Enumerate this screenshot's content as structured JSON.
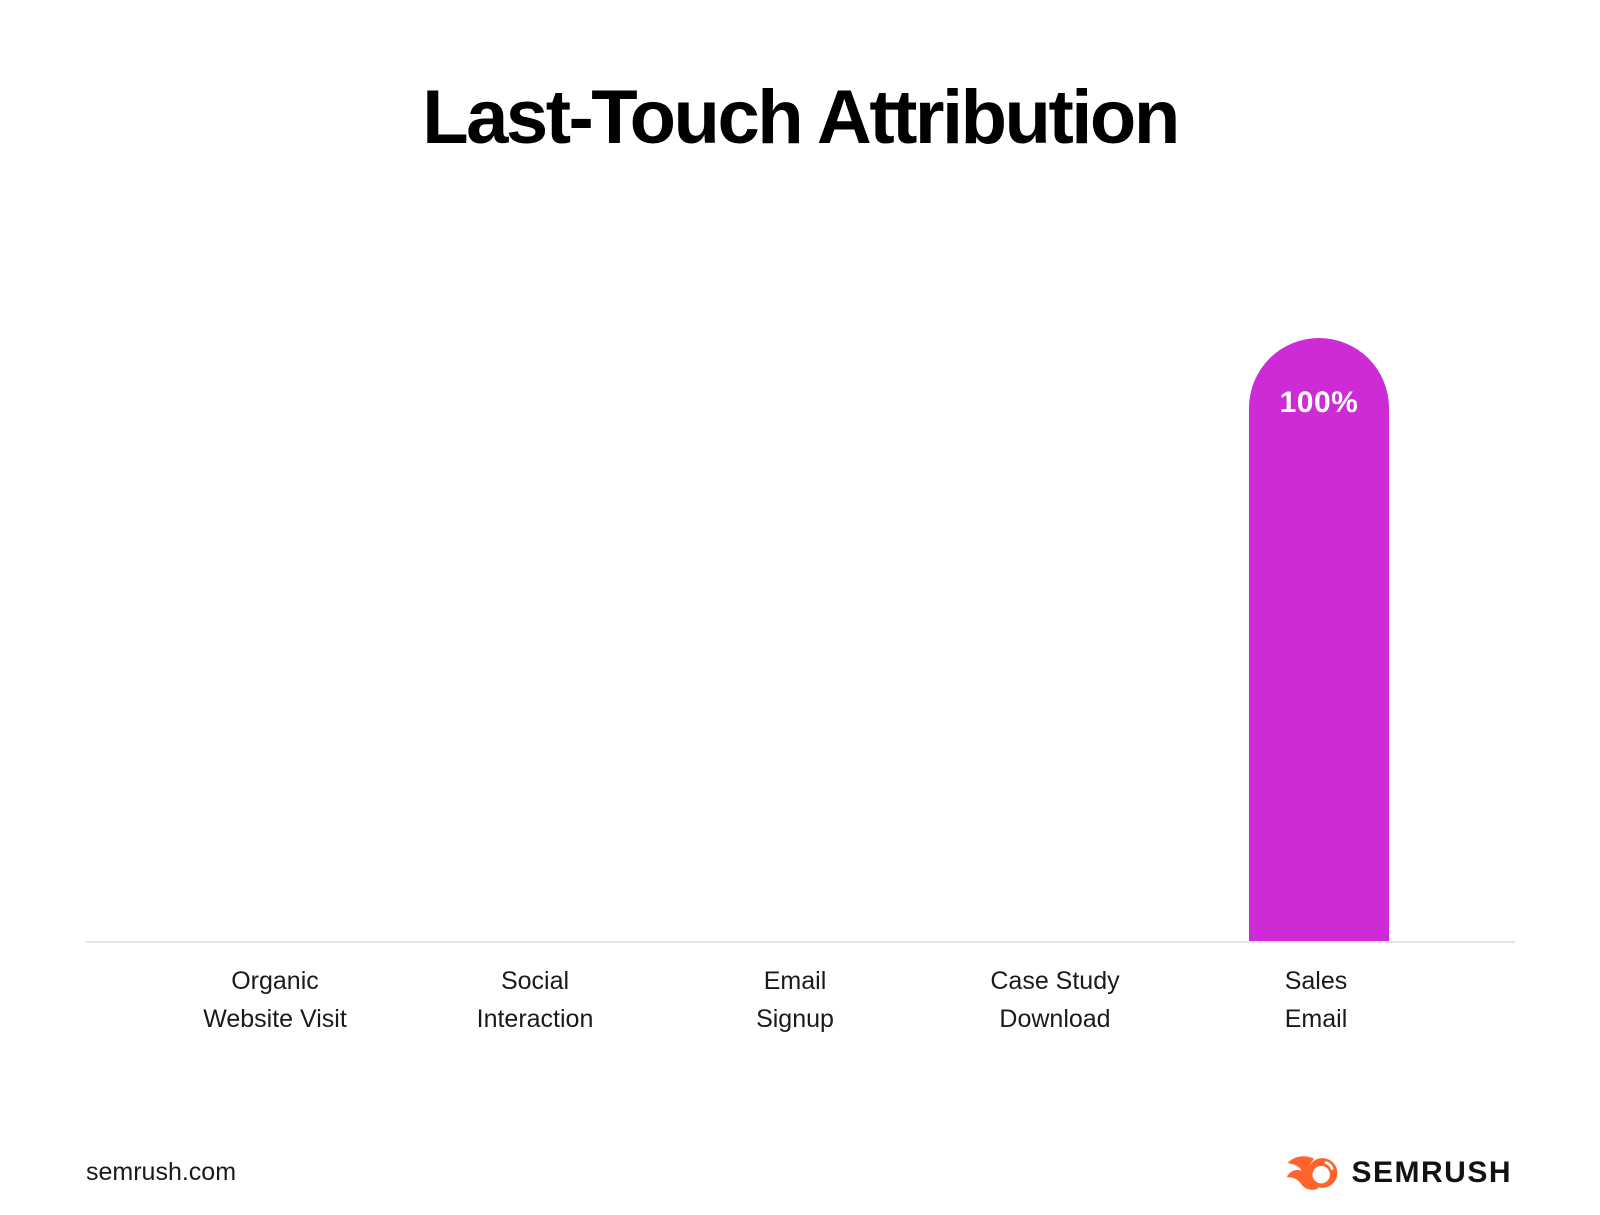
{
  "page": {
    "title": "Last-Touch Attribution",
    "background": "#ffffff"
  },
  "chart_data": {
    "type": "bar",
    "title": "Last-Touch Attribution",
    "categories": [
      "Organic Website Visit",
      "Social Interaction",
      "Email Signup",
      "Case Study Download",
      "Sales Email"
    ],
    "categories_lines": [
      {
        "line1": "Organic",
        "line2": "Website Visit"
      },
      {
        "line1": "Social",
        "line2": "Interaction"
      },
      {
        "line1": "Email",
        "line2": "Signup"
      },
      {
        "line1": "Case Study",
        "line2": "Download"
      },
      {
        "line1": "Sales",
        "line2": "Email"
      }
    ],
    "values": [
      0,
      0,
      0,
      0,
      100
    ],
    "value_label": "100%",
    "ylabel": "",
    "xlabel": "",
    "ylim": [
      0,
      100
    ],
    "grid": false,
    "legend_position": "none",
    "bar_color": "#cc2bd5",
    "value_label_color": "#ffffff",
    "axis_line_color": "#e5e5e5",
    "label_color": "#1a1a1a"
  },
  "footer": {
    "site_text": "semrush.com",
    "brand_name": "SEMRUSH",
    "brand_orange": "#ff642d",
    "brand_text_color": "#121212"
  }
}
